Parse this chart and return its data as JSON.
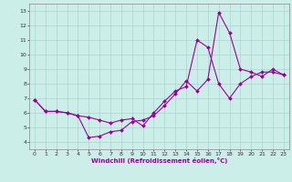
{
  "title": "",
  "xlabel": "Windchill (Refroidissement éolien,°C)",
  "bg_color": "#cceee8",
  "grid_color": "#aad4ce",
  "line_color": "#990099",
  "marker": "D",
  "markersize": 2,
  "linewidth": 0.8,
  "xlim": [
    -0.5,
    23.5
  ],
  "ylim": [
    3.5,
    13.5
  ],
  "xticks": [
    0,
    1,
    2,
    3,
    4,
    5,
    6,
    7,
    8,
    9,
    10,
    11,
    12,
    13,
    14,
    15,
    16,
    17,
    18,
    19,
    20,
    21,
    22,
    23
  ],
  "yticks": [
    4,
    5,
    6,
    7,
    8,
    9,
    10,
    11,
    12,
    13
  ],
  "line1_x": [
    0,
    1,
    2,
    3,
    4,
    5,
    6,
    7,
    8,
    9,
    10,
    11,
    12,
    13,
    14,
    15,
    16,
    17,
    18,
    19,
    20,
    21,
    22,
    23
  ],
  "line1_y": [
    6.9,
    6.1,
    6.1,
    6.0,
    5.8,
    4.3,
    4.4,
    4.7,
    4.8,
    5.4,
    5.5,
    5.8,
    6.5,
    7.3,
    8.2,
    7.5,
    8.3,
    12.9,
    11.5,
    9.0,
    8.8,
    8.5,
    9.0,
    8.6
  ],
  "line2_x": [
    0,
    1,
    2,
    3,
    4,
    5,
    6,
    7,
    8,
    9,
    10,
    11,
    12,
    13,
    14,
    15,
    16,
    17,
    18,
    19,
    20,
    21,
    22,
    23
  ],
  "line2_y": [
    6.9,
    6.1,
    6.1,
    6.0,
    5.8,
    5.7,
    5.5,
    5.3,
    5.5,
    5.6,
    5.1,
    6.0,
    6.8,
    7.5,
    7.8,
    11.0,
    10.5,
    8.0,
    7.0,
    8.0,
    8.5,
    8.8,
    8.8,
    8.6
  ],
  "xlabel_fontsize": 5.0,
  "tick_fontsize": 4.5
}
